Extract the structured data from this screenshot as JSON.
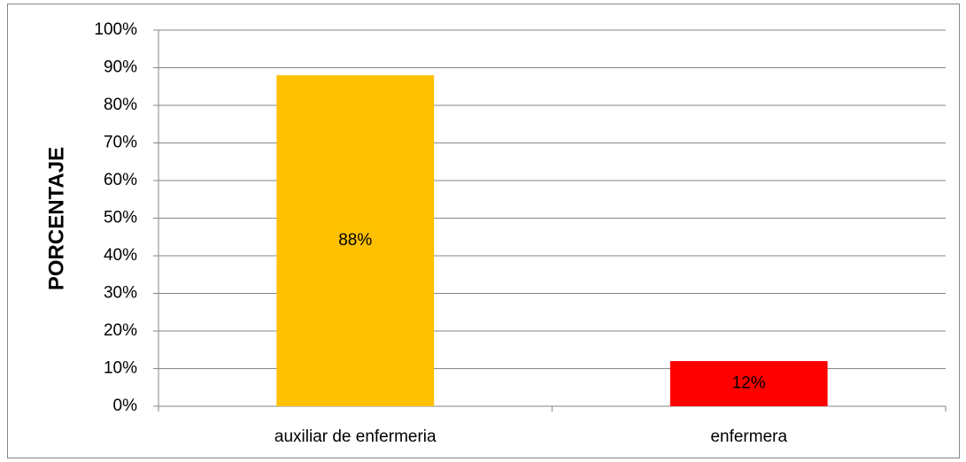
{
  "chart_data": {
    "type": "bar",
    "y_axis_label": "PORCENTAJE",
    "categories": [
      "auxiliar de enfermeria",
      "enfermera"
    ],
    "values": [
      88,
      12
    ],
    "value_labels": [
      "88%",
      "12%"
    ],
    "colors": [
      "#ffc000",
      "#ff0000"
    ],
    "ylim": [
      0,
      100
    ],
    "yticks": [
      {
        "value": 0,
        "label": "0%"
      },
      {
        "value": 10,
        "label": "10%"
      },
      {
        "value": 20,
        "label": "20%"
      },
      {
        "value": 30,
        "label": "30%"
      },
      {
        "value": 40,
        "label": "40%"
      },
      {
        "value": 50,
        "label": "50%"
      },
      {
        "value": 60,
        "label": "60%"
      },
      {
        "value": 70,
        "label": "70%"
      },
      {
        "value": 80,
        "label": "80%"
      },
      {
        "value": 90,
        "label": "90%"
      },
      {
        "value": 100,
        "label": "100%"
      }
    ],
    "grid": true
  }
}
